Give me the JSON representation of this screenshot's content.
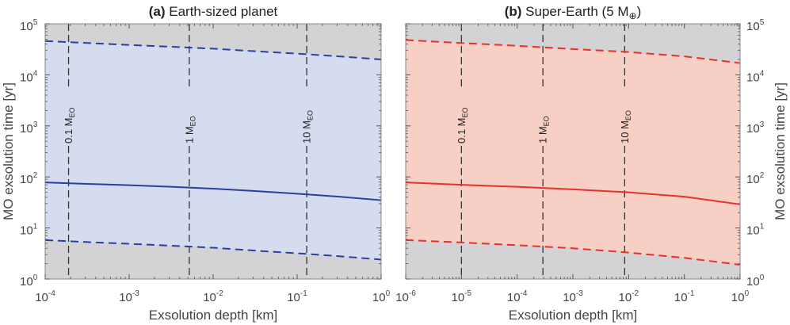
{
  "chart_data": [
    {
      "type": "area",
      "panel_tag": "(a)",
      "title": "Earth-sized planet",
      "title_suffix": "",
      "xlabel": "Exsolution depth [km]",
      "ylabel": "MO exsolution time [yr]",
      "x_scale": "log",
      "y_scale": "log",
      "xlim": [
        0.0001,
        1
      ],
      "ylim": [
        1,
        100000
      ],
      "x_ticks": [
        {
          "base": "10",
          "exp": "-4"
        },
        {
          "base": "10",
          "exp": "-3"
        },
        {
          "base": "10",
          "exp": "-2"
        },
        {
          "base": "10",
          "exp": "-1"
        },
        {
          "base": "10",
          "exp": "0"
        }
      ],
      "y_ticks": [
        {
          "base": "10",
          "exp": "0"
        },
        {
          "base": "10",
          "exp": "1"
        },
        {
          "base": "10",
          "exp": "2"
        },
        {
          "base": "10",
          "exp": "3"
        },
        {
          "base": "10",
          "exp": "4"
        },
        {
          "base": "10",
          "exp": "5"
        }
      ],
      "color": "#2b3f9e",
      "band_color": "#d6dcf0",
      "outside_color": "#d3d3d5",
      "x": [
        0.0001,
        0.000316,
        0.001,
        0.00316,
        0.01,
        0.0316,
        0.1,
        0.316,
        1
      ],
      "series": [
        {
          "style": "solid",
          "values": [
            78,
            73,
            69,
            64,
            59,
            53,
            47,
            41,
            35
          ]
        },
        {
          "style": "dashed",
          "values": [
            46000,
            42000,
            38500,
            35500,
            32500,
            29000,
            26000,
            23000,
            20000
          ]
        },
        {
          "style": "dashed",
          "values": [
            5.8,
            5.3,
            4.9,
            4.5,
            4.1,
            3.6,
            3.2,
            2.8,
            2.4
          ]
        }
      ],
      "vlines": [
        {
          "x": 0.00019,
          "label": "0.1 M",
          "sub": "EO"
        },
        {
          "x": 0.0052,
          "label": "1 M",
          "sub": "EO"
        },
        {
          "x": 0.13,
          "label": "10 M",
          "sub": "EO"
        }
      ]
    },
    {
      "type": "area",
      "panel_tag": "(b)",
      "title": "Super-Earth (5 M",
      "title_sub": "⊕",
      "title_suffix": ")",
      "xlabel": "Exsolution depth [km]",
      "ylabel": "MO exsolution time [yr]",
      "x_scale": "log",
      "y_scale": "log",
      "xlim": [
        1e-06,
        1
      ],
      "ylim": [
        1,
        100000
      ],
      "x_ticks": [
        {
          "base": "10",
          "exp": "-6"
        },
        {
          "base": "10",
          "exp": "-5"
        },
        {
          "base": "10",
          "exp": "-4"
        },
        {
          "base": "10",
          "exp": "-3"
        },
        {
          "base": "10",
          "exp": "-2"
        },
        {
          "base": "10",
          "exp": "-1"
        },
        {
          "base": "10",
          "exp": "0"
        }
      ],
      "y_ticks": [
        {
          "base": "10",
          "exp": "0"
        },
        {
          "base": "10",
          "exp": "1"
        },
        {
          "base": "10",
          "exp": "2"
        },
        {
          "base": "10",
          "exp": "3"
        },
        {
          "base": "10",
          "exp": "4"
        },
        {
          "base": "10",
          "exp": "5"
        }
      ],
      "color": "#e8302c",
      "band_color": "#f8cfc4",
      "outside_color": "#d3d3d5",
      "x": [
        1e-06,
        1e-05,
        0.0001,
        0.001,
        0.01,
        0.1,
        1
      ],
      "series": [
        {
          "style": "solid",
          "values": [
            78,
            70,
            64,
            57,
            50,
            41,
            29
          ]
        },
        {
          "style": "dashed",
          "values": [
            48000,
            42000,
            37000,
            32000,
            28000,
            23000,
            17000
          ]
        },
        {
          "style": "dashed",
          "values": [
            5.8,
            5.2,
            4.6,
            4.0,
            3.3,
            2.6,
            1.9
          ]
        }
      ],
      "vlines": [
        {
          "x": 1e-05,
          "label": "0.1 M",
          "sub": "EO"
        },
        {
          "x": 0.00029,
          "label": "1 M",
          "sub": "EO"
        },
        {
          "x": 0.0085,
          "label": "10 M",
          "sub": "EO"
        }
      ]
    }
  ]
}
